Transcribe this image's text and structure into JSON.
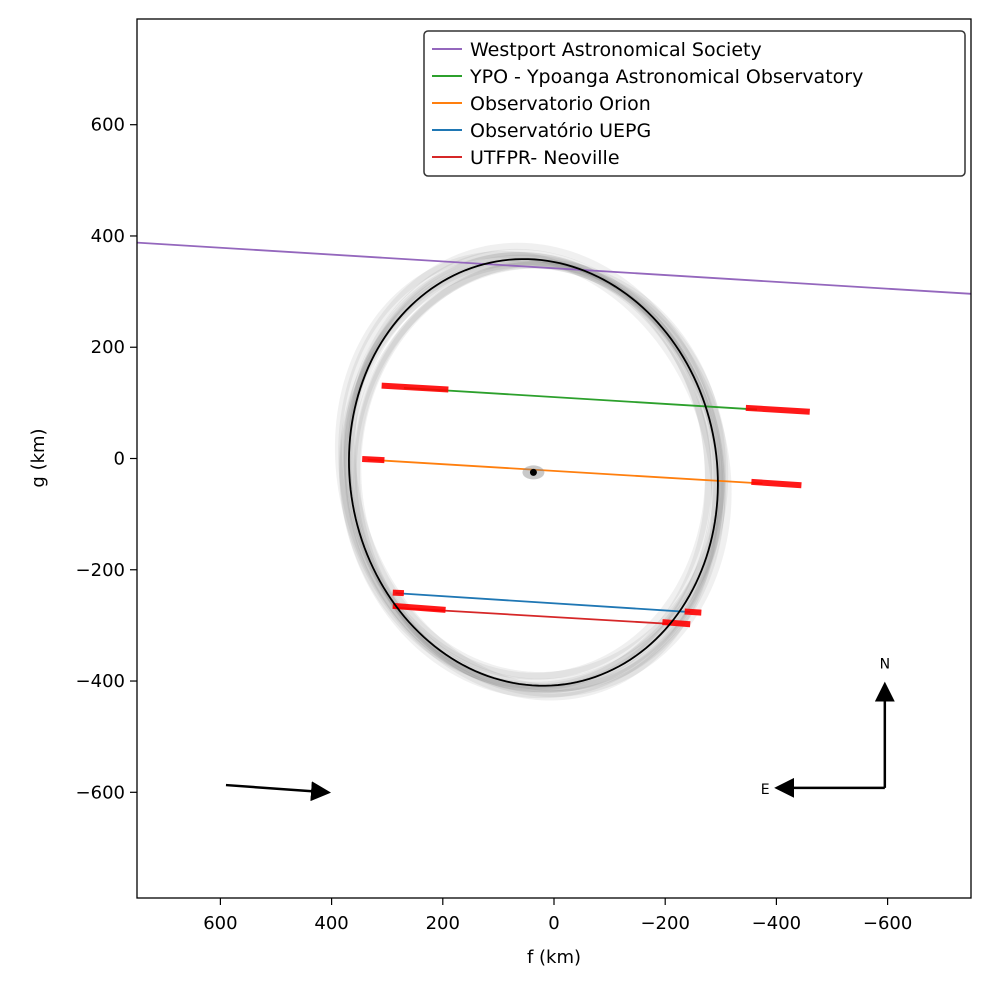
{
  "chart_data": {
    "type": "line",
    "title": "",
    "xlabel": "f (km)",
    "ylabel": "g (km)",
    "xlim": [
      750,
      -750
    ],
    "ylim": [
      -790,
      790
    ],
    "x_ticks": [
      600,
      400,
      200,
      0,
      -200,
      -400,
      -600
    ],
    "y_ticks": [
      600,
      400,
      200,
      0,
      -200,
      -400,
      -600
    ],
    "x_tick_labels": [
      "600",
      "400",
      "200",
      "0",
      "−200",
      "−400",
      "−600"
    ],
    "y_tick_labels": [
      "600",
      "400",
      "200",
      "0",
      "−200",
      "−400",
      "−600"
    ],
    "grid": false,
    "legend_position": "top-right",
    "series": [
      {
        "name": "Westport Astronomical Society",
        "color": "#9467bd",
        "x": [
          750,
          -750
        ],
        "y": [
          388,
          296
        ]
      },
      {
        "name": "YPO - Ypoanga Astronomical Observatory",
        "color": "#2ca02c",
        "x": [
          270,
          -365
        ],
        "y": [
          127,
          88
        ]
      },
      {
        "name": "Observatorio Orion",
        "color": "#ff7f0e",
        "x": [
          335,
          -375
        ],
        "y": [
          -2,
          -45
        ]
      },
      {
        "name": "Observatório UEPG",
        "color": "#1f77b4",
        "x": [
          285,
          -245
        ],
        "y": [
          -242,
          -276
        ]
      },
      {
        "name": "UTFPR- Neoville",
        "color": "#d62728",
        "x": [
          290,
          -205
        ],
        "y": [
          -268,
          -297
        ]
      }
    ],
    "error_bars": [
      {
        "x": [
          310,
          190
        ],
        "y": [
          131,
          124
        ]
      },
      {
        "x": [
          -345,
          -460
        ],
        "y": [
          91,
          84
        ]
      },
      {
        "x": [
          345,
          305
        ],
        "y": [
          -1,
          -3
        ]
      },
      {
        "x": [
          -355,
          -445
        ],
        "y": [
          -42,
          -48
        ]
      },
      {
        "x": [
          290,
          270
        ],
        "y": [
          -241,
          -242
        ]
      },
      {
        "x": [
          -235,
          -265
        ],
        "y": [
          -275,
          -277
        ]
      },
      {
        "x": [
          290,
          195
        ],
        "y": [
          -265,
          -272
        ]
      },
      {
        "x": [
          -195,
          -245
        ],
        "y": [
          -294,
          -298
        ]
      }
    ],
    "fit_ellipse": {
      "center": [
        37,
        -25
      ],
      "semi_major": 385,
      "semi_minor": 330,
      "angle_deg": 80
    },
    "center_marker": [
      37,
      -25
    ],
    "motion_arrow": {
      "from": [
        590,
        -587
      ],
      "to": [
        410,
        -600
      ]
    },
    "compass": {
      "north_label": "N",
      "east_label": "E",
      "origin": [
        -595,
        -592
      ],
      "north_tip": [
        -595,
        -410
      ],
      "east_tip": [
        -405,
        -592
      ]
    }
  }
}
